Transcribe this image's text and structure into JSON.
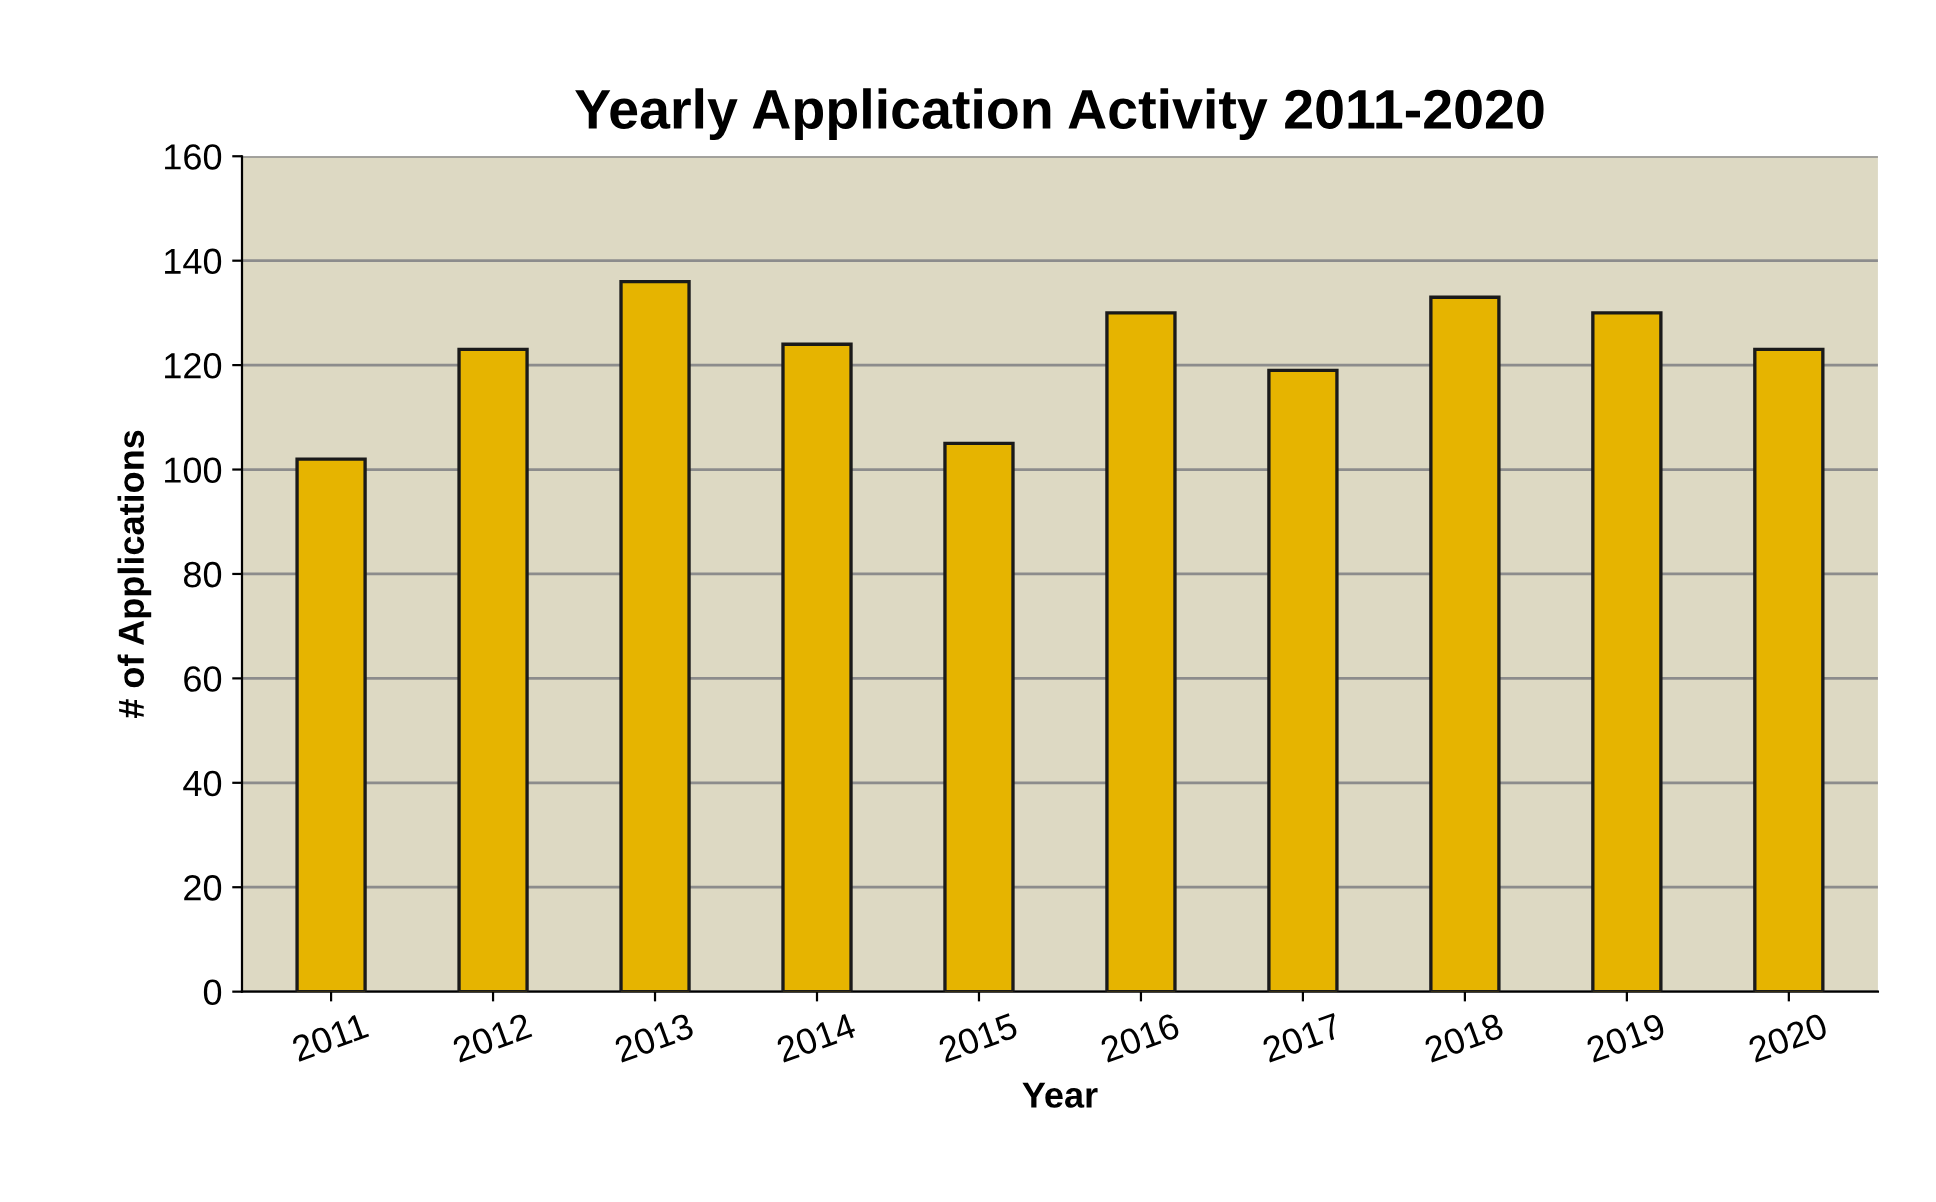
{
  "chart_data": {
    "type": "bar",
    "title": "Yearly Application Activity 2011-2020",
    "xlabel": "Year",
    "ylabel": "# of Applications",
    "categories": [
      "2011",
      "2012",
      "2013",
      "2014",
      "2015",
      "2016",
      "2017",
      "2018",
      "2019",
      "2020"
    ],
    "values": [
      102,
      123,
      136,
      124,
      105,
      130,
      119,
      133,
      130,
      123
    ],
    "color": "#e6b400",
    "ylim": [
      0,
      160
    ],
    "yticks": [
      0,
      20,
      40,
      60,
      80,
      100,
      120,
      140,
      160
    ],
    "grid": "y",
    "legend": false
  }
}
